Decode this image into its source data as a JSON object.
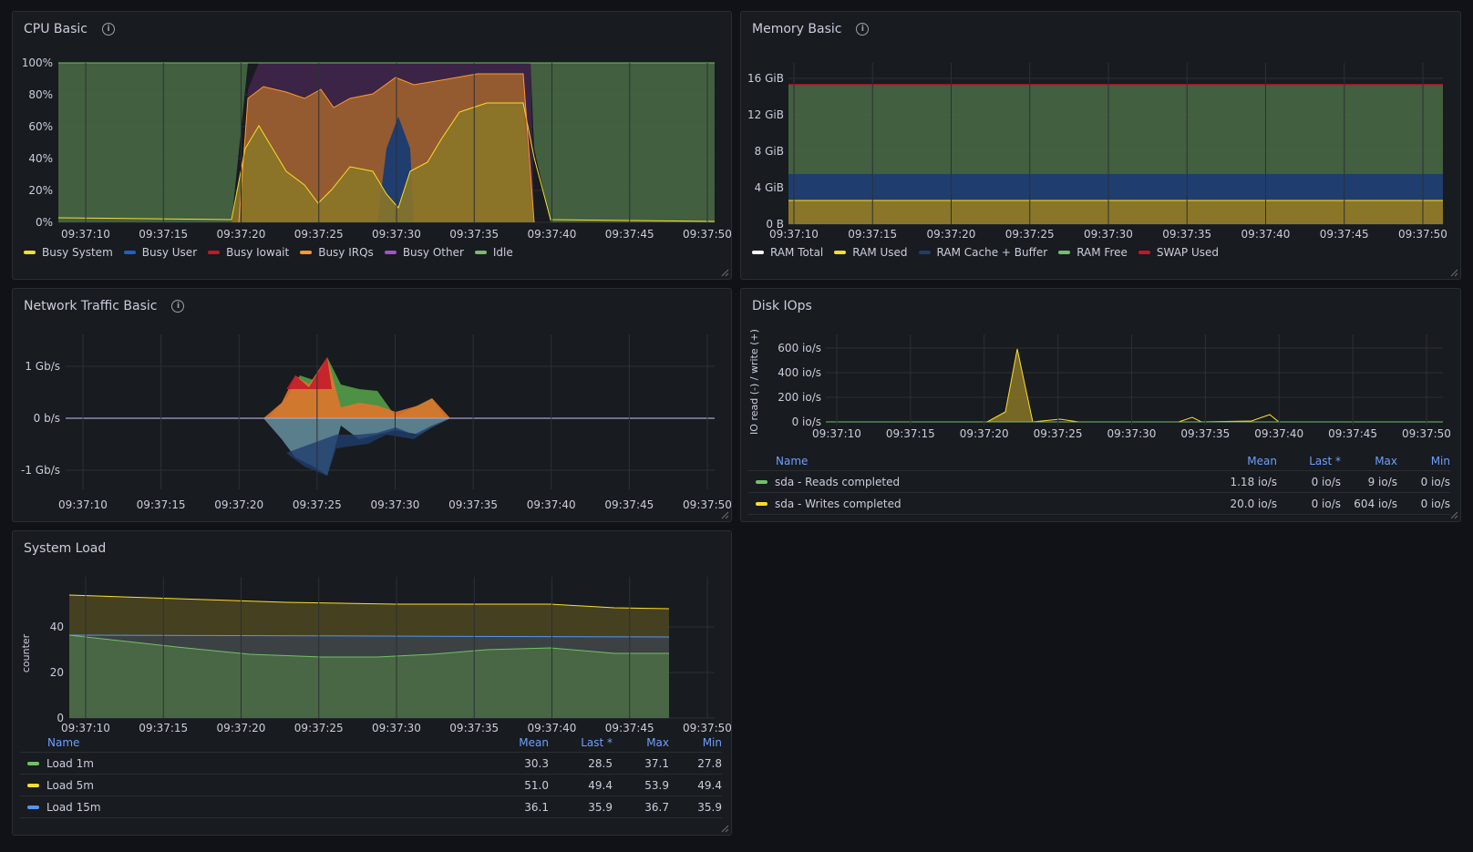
{
  "panels": {
    "cpu": {
      "title": "CPU Basic",
      "y_ticks": [
        "100%",
        "80%",
        "60%",
        "40%",
        "20%",
        "0%"
      ],
      "x_ticks": [
        "09:37:10",
        "09:37:15",
        "09:37:20",
        "09:37:25",
        "09:37:30",
        "09:37:35",
        "09:37:40",
        "09:37:45",
        "09:37:50"
      ],
      "legend": [
        {
          "label": "Busy System",
          "color": "#fade2a"
        },
        {
          "label": "Busy User",
          "color": "#1f60c4"
        },
        {
          "label": "Busy Iowait",
          "color": "#c4162a"
        },
        {
          "label": "Busy IRQs",
          "color": "#ff9830"
        },
        {
          "label": "Busy Other",
          "color": "#a352cc"
        },
        {
          "label": "Idle",
          "color": "#73bf69"
        }
      ]
    },
    "memory": {
      "title": "Memory Basic",
      "y_ticks": [
        "16 GiB",
        "12 GiB",
        "8 GiB",
        "4 GiB",
        "0 B"
      ],
      "x_ticks": [
        "09:37:10",
        "09:37:15",
        "09:37:20",
        "09:37:25",
        "09:37:30",
        "09:37:35",
        "09:37:40",
        "09:37:45",
        "09:37:50"
      ],
      "legend": [
        {
          "label": "RAM Total",
          "color": "#ffffff"
        },
        {
          "label": "RAM Used",
          "color": "#fade2a"
        },
        {
          "label": "RAM Cache + Buffer",
          "color": "#1f3d6e"
        },
        {
          "label": "RAM Free",
          "color": "#73bf69"
        },
        {
          "label": "SWAP Used",
          "color": "#c4162a"
        }
      ]
    },
    "network": {
      "title": "Network Traffic Basic",
      "y_ticks": [
        "1 Gb/s",
        "0 b/s",
        "-1 Gb/s"
      ],
      "x_ticks": [
        "09:37:10",
        "09:37:15",
        "09:37:20",
        "09:37:25",
        "09:37:30",
        "09:37:35",
        "09:37:40",
        "09:37:45",
        "09:37:50"
      ]
    },
    "disk": {
      "title": "Disk IOps",
      "y_axis_label": "IO read (-) / write (+)",
      "y_ticks": [
        "600 io/s",
        "400 io/s",
        "200 io/s",
        "0 io/s"
      ],
      "x_ticks": [
        "09:37:10",
        "09:37:15",
        "09:37:20",
        "09:37:25",
        "09:37:30",
        "09:37:35",
        "09:37:40",
        "09:37:45",
        "09:37:50"
      ],
      "table": {
        "headers": {
          "name": "Name",
          "mean": "Mean",
          "last": "Last *",
          "max": "Max",
          "min": "Min"
        },
        "rows": [
          {
            "name": "sda - Reads completed",
            "mean": "1.18 io/s",
            "last": "0 io/s",
            "max": "9 io/s",
            "min": "0 io/s",
            "color": "#73bf69"
          },
          {
            "name": "sda - Writes completed",
            "mean": "20.0 io/s",
            "last": "0 io/s",
            "max": "604 io/s",
            "min": "0 io/s",
            "color": "#fade2a"
          }
        ]
      }
    },
    "load": {
      "title": "System Load",
      "y_axis_label": "counter",
      "y_ticks": [
        "40",
        "20",
        "0"
      ],
      "x_ticks": [
        "09:37:10",
        "09:37:15",
        "09:37:20",
        "09:37:25",
        "09:37:30",
        "09:37:35",
        "09:37:40",
        "09:37:45",
        "09:37:50"
      ],
      "table": {
        "headers": {
          "name": "Name",
          "mean": "Mean",
          "last": "Last *",
          "max": "Max",
          "min": "Min"
        },
        "rows": [
          {
            "name": "Load 1m",
            "mean": "30.3",
            "last": "28.5",
            "max": "37.1",
            "min": "27.8",
            "color": "#73bf69"
          },
          {
            "name": "Load 5m",
            "mean": "51.0",
            "last": "49.4",
            "max": "53.9",
            "min": "49.4",
            "color": "#fade2a"
          },
          {
            "name": "Load 15m",
            "mean": "36.1",
            "last": "35.9",
            "max": "36.7",
            "min": "35.9",
            "color": "#5794f2"
          }
        ]
      }
    }
  }
}
